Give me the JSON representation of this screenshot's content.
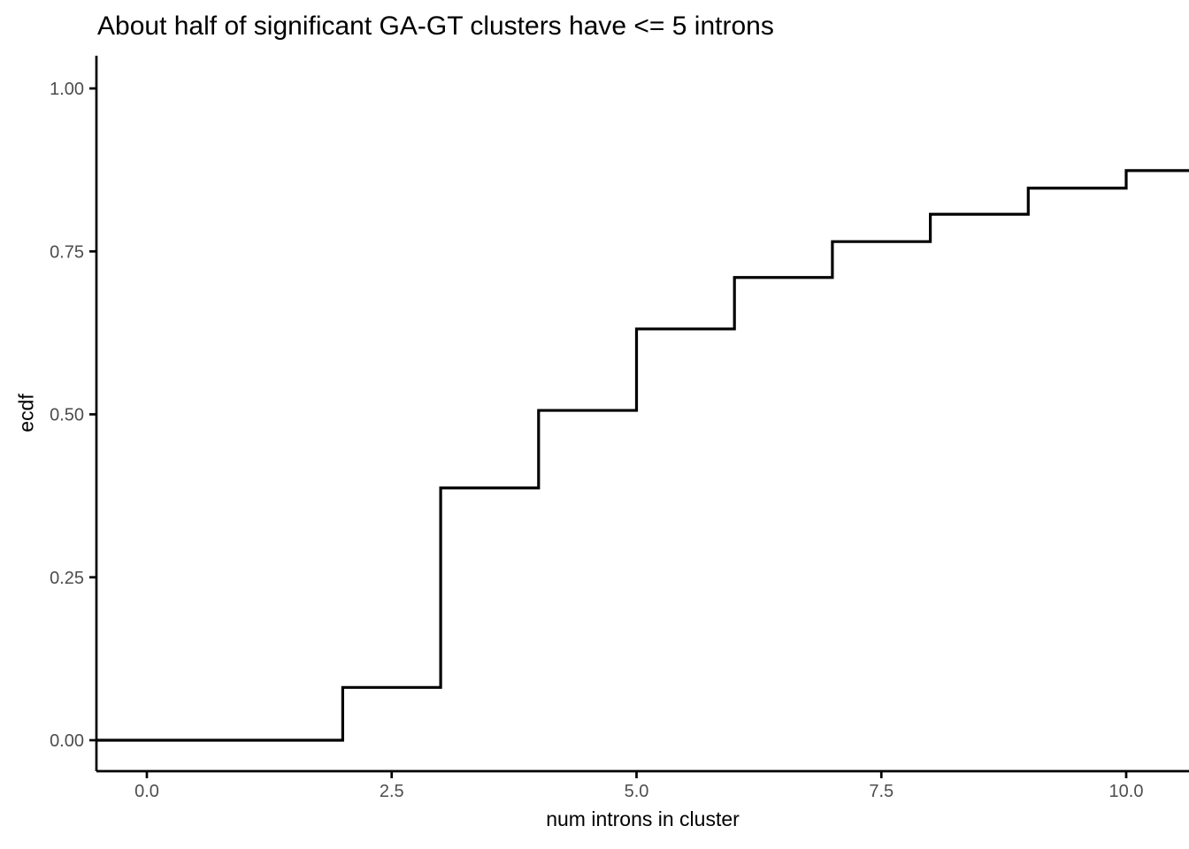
{
  "title": "About half of significant GA-GT clusters have <= 5 introns",
  "chart_data": {
    "type": "line",
    "subtype": "ecdf_step",
    "title": "About half of significant GA-GT clusters have <= 5 introns",
    "xlabel": "num introns in cluster",
    "ylabel": "ecdf",
    "grid": false,
    "legend": false,
    "xlim": [
      -0.52,
      10.64
    ],
    "ylim": [
      -0.05,
      1.05
    ],
    "x_ticks": {
      "values": [
        0,
        2.5,
        5,
        7.5,
        10
      ],
      "labels": [
        "0.0",
        "2.5",
        "5.0",
        "7.5",
        "10.0"
      ]
    },
    "y_ticks": {
      "values": [
        0,
        0.25,
        0.5,
        0.75,
        1
      ],
      "labels": [
        "0.00",
        "0.25",
        "0.50",
        "0.75",
        "1.00"
      ]
    },
    "start_ecdf": 0,
    "series": [
      {
        "name": "ecdf",
        "x": [
          2,
          3,
          4,
          5,
          6,
          7,
          8,
          9,
          10
        ],
        "y": [
          0.081,
          0.387,
          0.506,
          0.631,
          0.71,
          0.765,
          0.807,
          0.847,
          0.874
        ]
      }
    ],
    "colors": {
      "line": "#000000",
      "axis": "#000000",
      "tick_text": "#4D4D4D",
      "title_text": "#000000",
      "background": "#ffffff"
    }
  }
}
